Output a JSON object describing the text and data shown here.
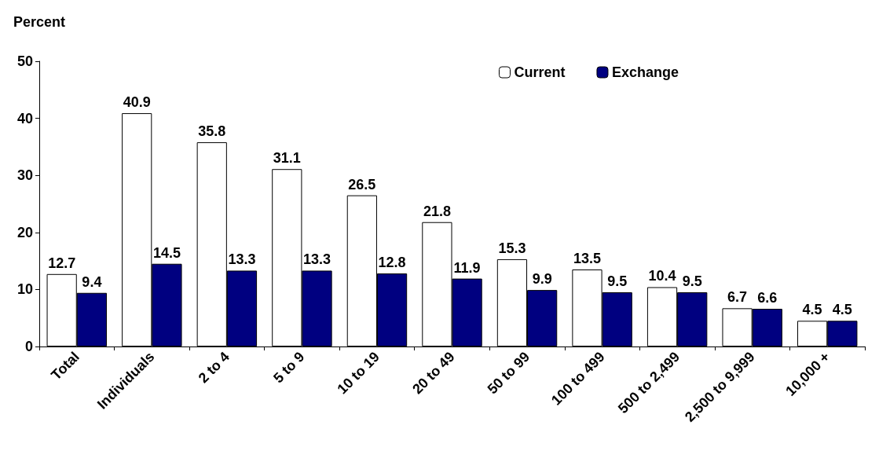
{
  "chart_data": {
    "type": "bar",
    "ylabel": "Percent",
    "categories": [
      "Total",
      "Individuals",
      "2 to 4",
      "5 to 9",
      "10 to 19",
      "20 to 49",
      "50 to 99",
      "100 to 499",
      "500 to 2,499",
      "2,500 to 9,999",
      "10,000 +"
    ],
    "series": [
      {
        "name": "Current",
        "color": "#ffffff",
        "values": [
          12.7,
          40.9,
          35.8,
          31.1,
          26.5,
          21.8,
          15.3,
          13.5,
          10.4,
          6.7,
          4.5
        ]
      },
      {
        "name": "Exchange",
        "color": "#000080",
        "values": [
          9.4,
          14.5,
          13.3,
          13.3,
          12.8,
          11.9,
          9.9,
          9.5,
          9.5,
          6.6,
          4.5
        ]
      }
    ],
    "ylim": [
      0,
      50
    ],
    "yticks": [
      0,
      10,
      20,
      30,
      40,
      50
    ],
    "grid": false,
    "legend": "top right",
    "data_labels": true
  }
}
